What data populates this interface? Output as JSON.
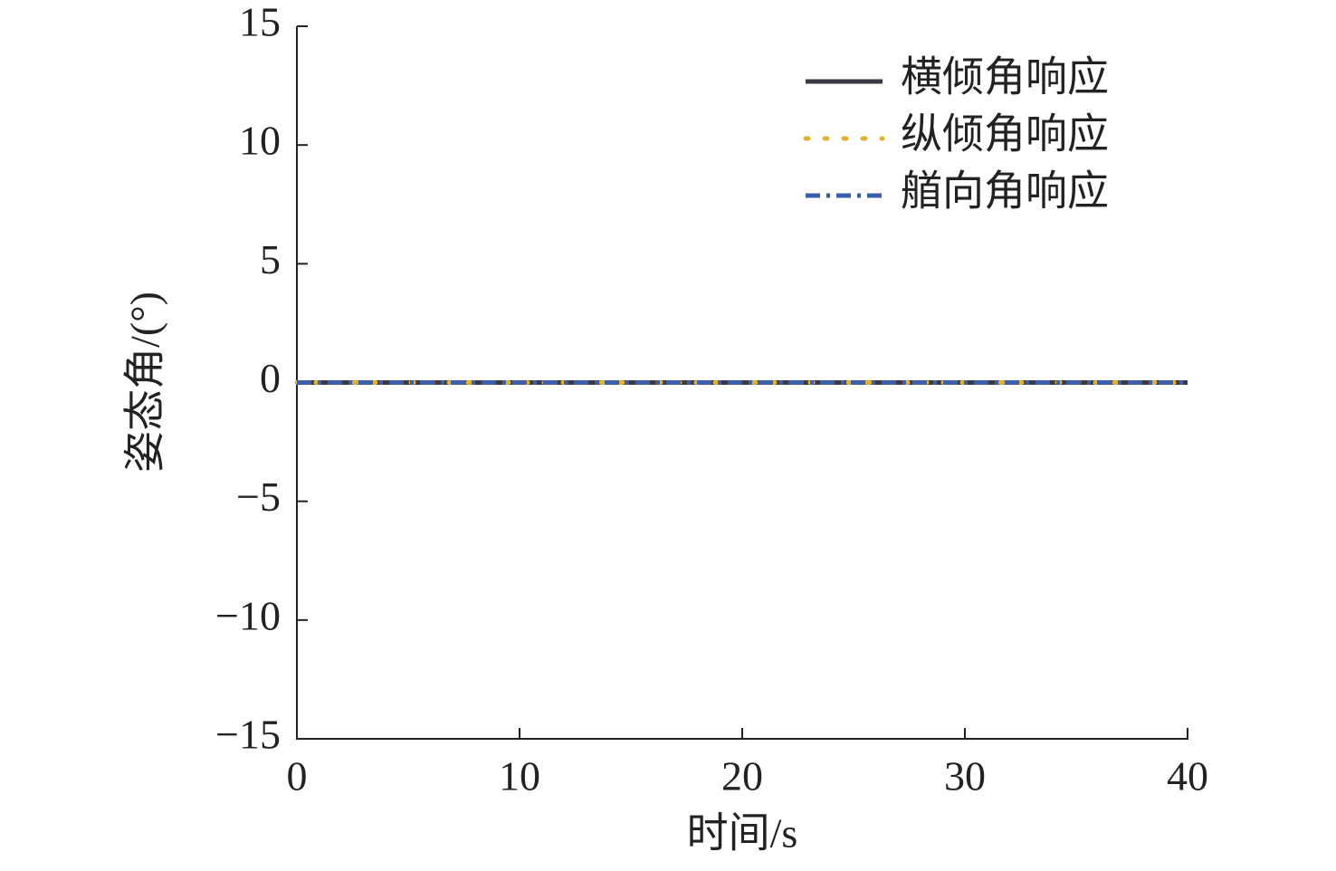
{
  "chart_data": {
    "type": "line",
    "xlabel": "时间/s",
    "ylabel": "姿态角/(°)",
    "x": [
      0,
      2,
      4,
      6,
      8,
      10,
      12,
      14,
      16,
      18,
      20,
      22,
      24,
      26,
      28,
      30,
      32,
      34,
      36,
      38,
      40
    ],
    "series": [
      {
        "name": "横倾角响应",
        "color": "#3a3a40",
        "dash": "solid",
        "values": [
          0,
          0,
          0,
          0,
          0,
          0,
          0,
          0,
          0,
          0,
          0,
          0,
          0,
          0,
          0,
          0,
          0,
          0,
          0,
          0,
          0
        ]
      },
      {
        "name": "纵倾角响应",
        "color": "#e3b12c",
        "dash": "dotted",
        "values": [
          0,
          0,
          0,
          0,
          0,
          0,
          0,
          0,
          0,
          0,
          0,
          0,
          0,
          0,
          0,
          0,
          0,
          0,
          0,
          0,
          0
        ]
      },
      {
        "name": "艏向角响应",
        "color": "#3b5fad",
        "dash": "dashdot",
        "values": [
          0,
          0,
          0,
          0,
          0,
          0,
          0,
          0,
          0,
          0,
          0,
          0,
          0,
          0,
          0,
          0,
          0,
          0,
          0,
          0,
          0
        ]
      }
    ],
    "xlim": [
      0,
      40
    ],
    "xticks": [
      0,
      10,
      20,
      30,
      40
    ],
    "ylim": [
      -15,
      15
    ],
    "yticks": [
      {
        "value": -15,
        "label": "−15"
      },
      {
        "value": -10,
        "label": "−10"
      },
      {
        "value": -5,
        "label": "−5"
      },
      0,
      5,
      10,
      15
    ],
    "legend": "upper right",
    "grid": false
  }
}
